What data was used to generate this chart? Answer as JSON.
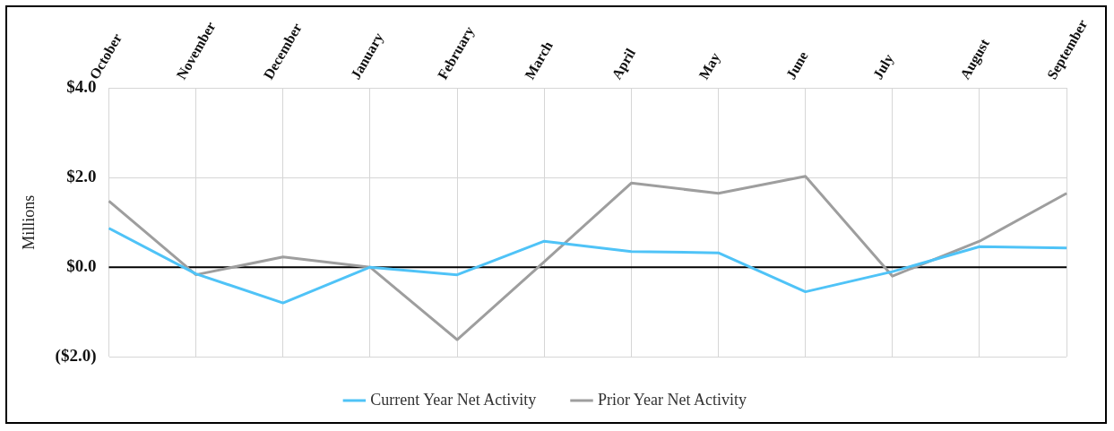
{
  "chart_data": {
    "type": "line",
    "ylabel": "Millions",
    "categories": [
      "October",
      "November",
      "December",
      "January",
      "February",
      "March",
      "April",
      "May",
      "June",
      "July",
      "August",
      "September"
    ],
    "series": [
      {
        "name": "Current Year Net Activity",
        "color": "#4fc3f7",
        "values": [
          0.87,
          -0.15,
          -0.8,
          0,
          -0.17,
          0.58,
          0.35,
          0.32,
          -0.55,
          -0.1,
          0.46,
          0.43
        ]
      },
      {
        "name": "Prior Year Net Activity",
        "color": "#9e9e9e",
        "values": [
          1.48,
          -0.17,
          0.23,
          0,
          -1.62,
          0.12,
          1.88,
          1.65,
          2.03,
          -0.2,
          0.58,
          1.65
        ]
      }
    ],
    "ylim": [
      -2,
      4
    ],
    "yticks": [
      {
        "value": -2,
        "label": "($2.0)"
      },
      {
        "value": 0,
        "label": "$0.0"
      },
      {
        "value": 2,
        "label": "$2.0"
      },
      {
        "value": 4,
        "label": "$4.0"
      }
    ],
    "ref_lines": [
      {
        "axis": "y",
        "value": 0,
        "color": "#000000"
      }
    ],
    "grid": true,
    "legend": "bottom",
    "marker": "none",
    "line_style": "solid"
  }
}
